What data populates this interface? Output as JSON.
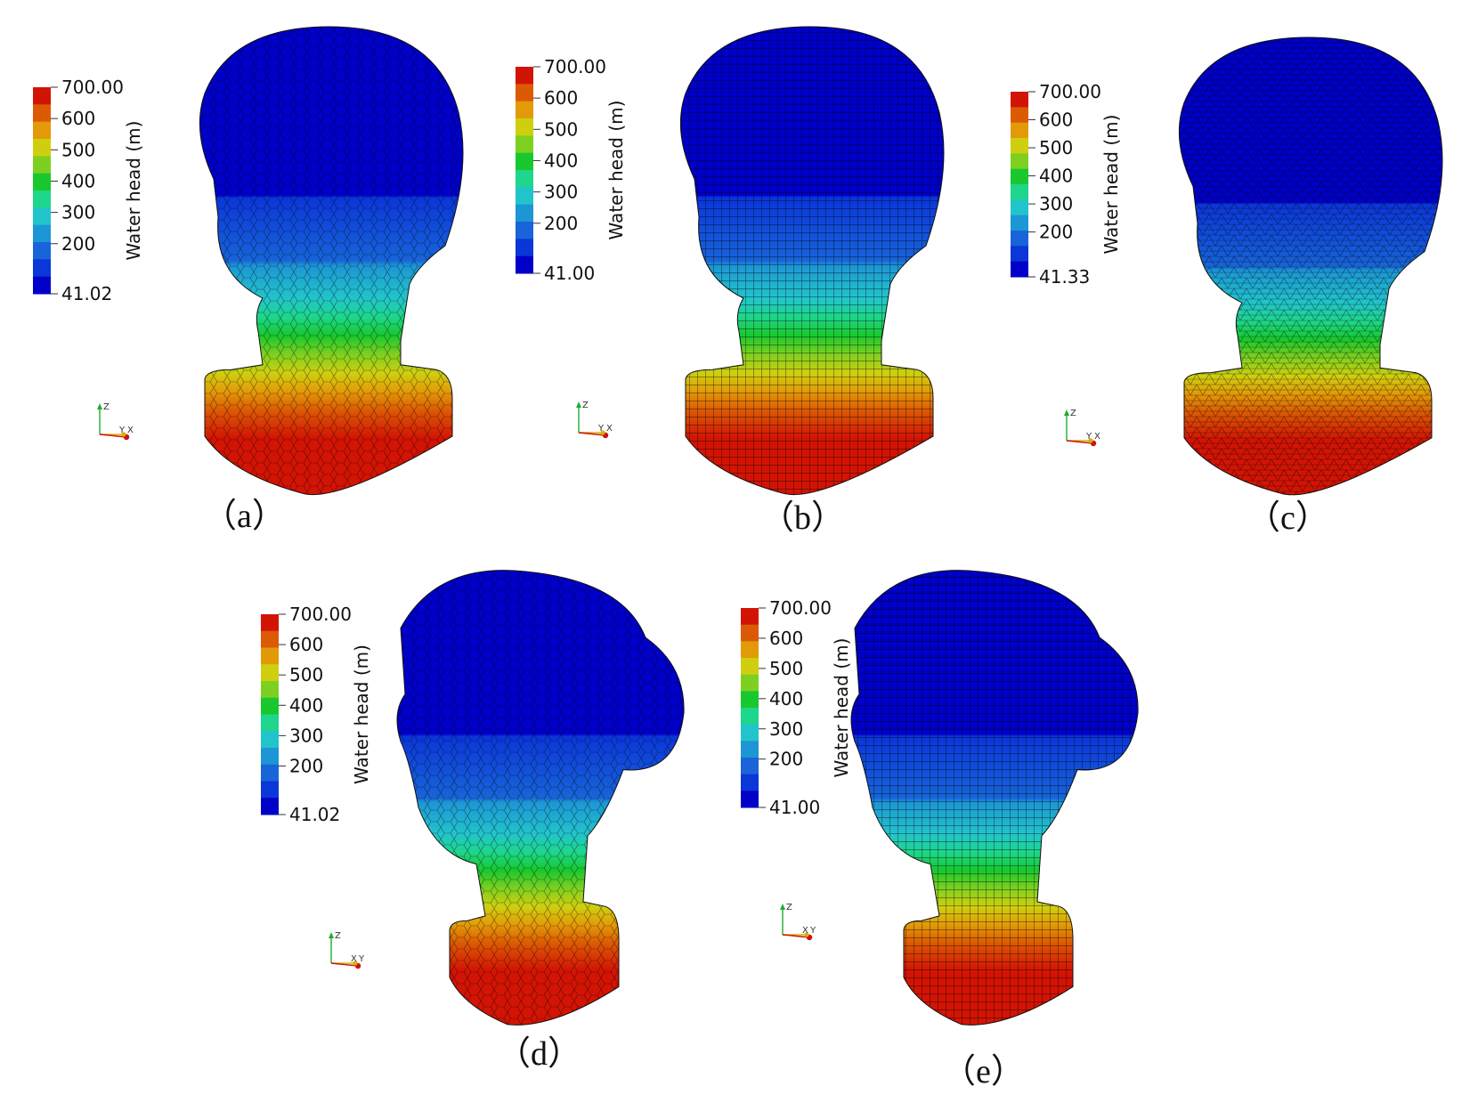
{
  "colormap": {
    "bands": [
      "#0000c8",
      "#0b36d8",
      "#1864d8",
      "#1c96d4",
      "#22c4cc",
      "#1ed68c",
      "#18c82e",
      "#7ed020",
      "#cfcf10",
      "#e29a08",
      "#dc5a04",
      "#d21404"
    ]
  },
  "panels": [
    {
      "id": "a",
      "label": "（a）",
      "colorbar": {
        "title": "Water head (m)",
        "max_label": "700.00",
        "min_label": "41.02",
        "tick_labels": [
          "600",
          "500",
          "400",
          "300",
          "200"
        ]
      },
      "axes_labels": [
        "Z",
        "Y",
        "X"
      ],
      "mesh": "polyhedral"
    },
    {
      "id": "b",
      "label": "（b）",
      "colorbar": {
        "title": "Water head (m)",
        "max_label": "700.00",
        "min_label": "41.00",
        "tick_labels": [
          "600",
          "500",
          "400",
          "300",
          "200"
        ]
      },
      "axes_labels": [
        "Z",
        "Y",
        "X"
      ],
      "mesh": "hexahedral"
    },
    {
      "id": "c",
      "label": "（c）",
      "colorbar": {
        "title": "Water head (m)",
        "max_label": "700.00",
        "min_label": "41.33",
        "tick_labels": [
          "600",
          "500",
          "400",
          "300",
          "200"
        ]
      },
      "axes_labels": [
        "Z",
        "Y",
        "X"
      ],
      "mesh": "tetrahedral"
    },
    {
      "id": "d",
      "label": "（d）",
      "colorbar": {
        "title": "Water head (m)",
        "max_label": "700.00",
        "min_label": "41.02",
        "tick_labels": [
          "600",
          "500",
          "400",
          "300",
          "200"
        ]
      },
      "axes_labels": [
        "Z",
        "X",
        "Y"
      ],
      "mesh": "polyhedral"
    },
    {
      "id": "e",
      "label": "（e）",
      "colorbar": {
        "title": "Water head (m)",
        "max_label": "700.00",
        "min_label": "41.00",
        "tick_labels": [
          "600",
          "500",
          "400",
          "300",
          "200"
        ]
      },
      "axes_labels": [
        "Z",
        "X",
        "Y"
      ],
      "mesh": "hexahedral"
    }
  ]
}
